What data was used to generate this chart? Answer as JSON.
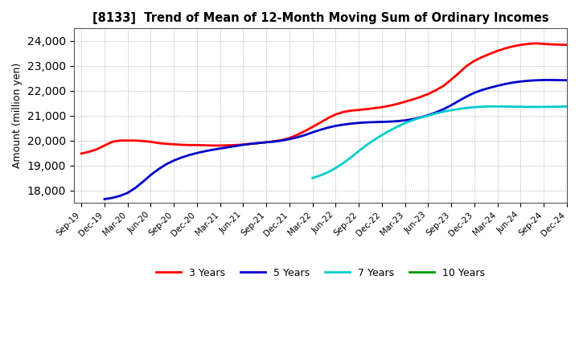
{
  "title": "[8133]  Trend of Mean of 12-Month Moving Sum of Ordinary Incomes",
  "ylabel": "Amount (million yen)",
  "ylim": [
    17500,
    24500
  ],
  "yticks": [
    18000,
    19000,
    20000,
    21000,
    22000,
    23000,
    24000
  ],
  "background_color": "#ffffff",
  "grid_color": "#aaaaaa",
  "x_labels": [
    "Sep-19",
    "Dec-19",
    "Mar-20",
    "Jun-20",
    "Sep-20",
    "Dec-20",
    "Mar-21",
    "Jun-21",
    "Sep-21",
    "Dec-21",
    "Mar-22",
    "Jun-22",
    "Sep-22",
    "Dec-22",
    "Mar-23",
    "Jun-23",
    "Sep-23",
    "Dec-23",
    "Mar-24",
    "Jun-24",
    "Sep-24",
    "Dec-24"
  ],
  "x_tick_positions": [
    0,
    3,
    6,
    9,
    12,
    15,
    18,
    21,
    24,
    27,
    30,
    33,
    36,
    39,
    42,
    45,
    48,
    51,
    54,
    57,
    60,
    63
  ],
  "n_months": 64,
  "series": {
    "3 Years": {
      "color": "#ff0000",
      "start_month": 0,
      "data": [
        19480,
        19550,
        19650,
        19800,
        19950,
        20000,
        20000,
        20000,
        19980,
        19950,
        19900,
        19870,
        19850,
        19830,
        19820,
        19820,
        19810,
        19800,
        19800,
        19810,
        19820,
        19840,
        19870,
        19900,
        19930,
        19970,
        20020,
        20100,
        20230,
        20380,
        20550,
        20720,
        20900,
        21050,
        21150,
        21200,
        21230,
        21260,
        21300,
        21340,
        21400,
        21470,
        21560,
        21650,
        21750,
        21870,
        22020,
        22200,
        22450,
        22720,
        23000,
        23200,
        23350,
        23480,
        23600,
        23700,
        23780,
        23840,
        23880,
        23900,
        23880,
        23860,
        23850,
        23840
      ]
    },
    "5 Years": {
      "color": "#0000cc",
      "start_month": 3,
      "data": [
        17650,
        17700,
        17780,
        17900,
        18100,
        18350,
        18620,
        18850,
        19050,
        19200,
        19320,
        19420,
        19500,
        19570,
        19630,
        19680,
        19730,
        19780,
        19830,
        19870,
        19900,
        19930,
        19960,
        20000,
        20060,
        20130,
        20220,
        20330,
        20430,
        20520,
        20590,
        20640,
        20680,
        20710,
        20730,
        20740,
        20750,
        20760,
        20780,
        20810,
        20860,
        20930,
        21020,
        21130,
        21260,
        21420,
        21600,
        21770,
        21920,
        22030,
        22120,
        22200,
        22270,
        22330,
        22370,
        22400,
        22420,
        22430,
        22430,
        22425,
        22420
      ]
    },
    "7 Years": {
      "color": "#00cccc",
      "start_month": 30,
      "data": [
        18500,
        18600,
        18730,
        18900,
        19100,
        19330,
        19580,
        19820,
        20030,
        20220,
        20400,
        20560,
        20700,
        20820,
        20920,
        21000,
        21090,
        21160,
        21220,
        21270,
        21310,
        21340,
        21360,
        21370,
        21370,
        21365,
        21360,
        21355,
        21350,
        21350,
        21350,
        21355,
        21360,
        21370
      ]
    },
    "10 Years": {
      "color": "#009900",
      "start_month": 0,
      "data": []
    }
  }
}
